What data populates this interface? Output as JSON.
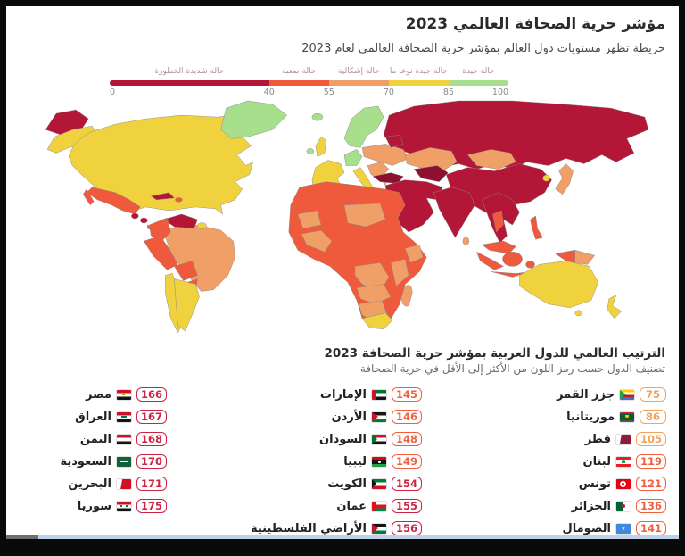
{
  "page": {
    "title": "مؤشر حرية الصحافة العالمي 2023",
    "subtitle": "خريطة تظهر مستويات دول العالم بمؤشر حرية الصحافة العالمي لعام 2023"
  },
  "palette": {
    "very_serious": "#b31636",
    "very_serious_dark": "#8d102f",
    "difficult": "#f05a3c",
    "problematic": "#f0a066",
    "fairly_good": "#efd23d",
    "good": "#a8df8d",
    "badge_crimson": "#cc2342",
    "badge_tomato": "#f0603f",
    "badge_orange": "#f2a35e"
  },
  "legend": {
    "segments": [
      {
        "label": "حالة شديدة الخطورة",
        "from": 0,
        "to": 40,
        "color": "very_serious"
      },
      {
        "label": "حالة صعبة",
        "from": 40,
        "to": 55,
        "color": "difficult"
      },
      {
        "label": "حالة إشكالية",
        "from": 55,
        "to": 70,
        "color": "problematic"
      },
      {
        "label": "حالة جيدة نوعا ما",
        "from": 70,
        "to": 85,
        "color": "fairly_good"
      },
      {
        "label": "حالة جيدة",
        "from": 85,
        "to": 100,
        "color": "good"
      }
    ],
    "ticks": [
      0,
      40,
      55,
      70,
      85,
      100
    ]
  },
  "ranking": {
    "title": "الترتيب العالمي للدول العربية بمؤشر حرية الصحافة 2023",
    "subtitle": "تصنيف الدول حسب رمز اللون من الأكثر إلى الأقل في حرية الصحافة",
    "columns": [
      {
        "rows": [
          {
            "name": "جزر القمر",
            "rank": 75,
            "tone": "orange",
            "flag": "km"
          },
          {
            "name": "موريتانيا",
            "rank": 86,
            "tone": "orange",
            "flag": "mr"
          },
          {
            "name": "قطر",
            "rank": 105,
            "tone": "orange",
            "flag": "qa"
          },
          {
            "name": "لبنان",
            "rank": 119,
            "tone": "tomato",
            "flag": "lb"
          },
          {
            "name": "تونس",
            "rank": 121,
            "tone": "tomato",
            "flag": "tn"
          },
          {
            "name": "الجزائر",
            "rank": 136,
            "tone": "tomato",
            "flag": "dz"
          },
          {
            "name": "الصومال",
            "rank": 141,
            "tone": "tomato",
            "flag": "so"
          }
        ]
      },
      {
        "rows": [
          {
            "name": "الإمارات",
            "rank": 145,
            "tone": "tomato",
            "flag": "ae"
          },
          {
            "name": "الأردن",
            "rank": 146,
            "tone": "tomato",
            "flag": "jo"
          },
          {
            "name": "السودان",
            "rank": 148,
            "tone": "tomato",
            "flag": "sd"
          },
          {
            "name": "ليبيا",
            "rank": 149,
            "tone": "tomato",
            "flag": "ly"
          },
          {
            "name": "الكويت",
            "rank": 154,
            "tone": "crimson",
            "flag": "kw"
          },
          {
            "name": "عمان",
            "rank": 155,
            "tone": "crimson",
            "flag": "om"
          },
          {
            "name": "الأراضي الفلسطينية",
            "rank": 156,
            "tone": "crimson",
            "flag": "ps"
          }
        ]
      },
      {
        "rows": [
          {
            "name": "مصر",
            "rank": 166,
            "tone": "crimson",
            "flag": "eg"
          },
          {
            "name": "العراق",
            "rank": 167,
            "tone": "crimson",
            "flag": "iq"
          },
          {
            "name": "اليمن",
            "rank": 168,
            "tone": "crimson",
            "flag": "ye"
          },
          {
            "name": "السعودية",
            "rank": 170,
            "tone": "crimson",
            "flag": "sa"
          },
          {
            "name": "البحرين",
            "rank": 171,
            "tone": "crimson",
            "flag": "bh"
          },
          {
            "name": "سوريا",
            "rank": 175,
            "tone": "crimson",
            "flag": "sy"
          }
        ]
      }
    ]
  },
  "chart_data": {
    "type": "heatmap",
    "title": "مؤشر حرية الصحافة العالمي 2023",
    "subtitle": "خريطة تظهر مستويات دول العالم بمؤشر حرية الصحافة العالمي لعام 2023",
    "scale": {
      "range": [
        0,
        100
      ],
      "bins": [
        {
          "label": "حالة شديدة الخطورة",
          "from": 0,
          "to": 40,
          "color": "#b31636"
        },
        {
          "label": "حالة صعبة",
          "from": 40,
          "to": 55,
          "color": "#f05a3c"
        },
        {
          "label": "حالة إشكالية",
          "from": 55,
          "to": 70,
          "color": "#f0a066"
        },
        {
          "label": "حالة جيدة نوعا ما",
          "from": 70,
          "to": 85,
          "color": "#efd23d"
        },
        {
          "label": "حالة جيدة",
          "from": 85,
          "to": 100,
          "color": "#a8df8d"
        }
      ]
    },
    "arab_rankings": [
      {
        "country": "جزر القمر",
        "rank": 75
      },
      {
        "country": "موريتانيا",
        "rank": 86
      },
      {
        "country": "قطر",
        "rank": 105
      },
      {
        "country": "لبنان",
        "rank": 119
      },
      {
        "country": "تونس",
        "rank": 121
      },
      {
        "country": "الجزائر",
        "rank": 136
      },
      {
        "country": "الصومال",
        "rank": 141
      },
      {
        "country": "الإمارات",
        "rank": 145
      },
      {
        "country": "الأردن",
        "rank": 146
      },
      {
        "country": "السودان",
        "rank": 148
      },
      {
        "country": "ليبيا",
        "rank": 149
      },
      {
        "country": "الكويت",
        "rank": 154
      },
      {
        "country": "عمان",
        "rank": 155
      },
      {
        "country": "الأراضي الفلسطينية",
        "rank": 156
      },
      {
        "country": "مصر",
        "rank": 166
      },
      {
        "country": "العراق",
        "rank": 167
      },
      {
        "country": "اليمن",
        "rank": 168
      },
      {
        "country": "السعودية",
        "rank": 170
      },
      {
        "country": "البحرين",
        "rank": 171
      },
      {
        "country": "سوريا",
        "rank": 175
      }
    ]
  }
}
